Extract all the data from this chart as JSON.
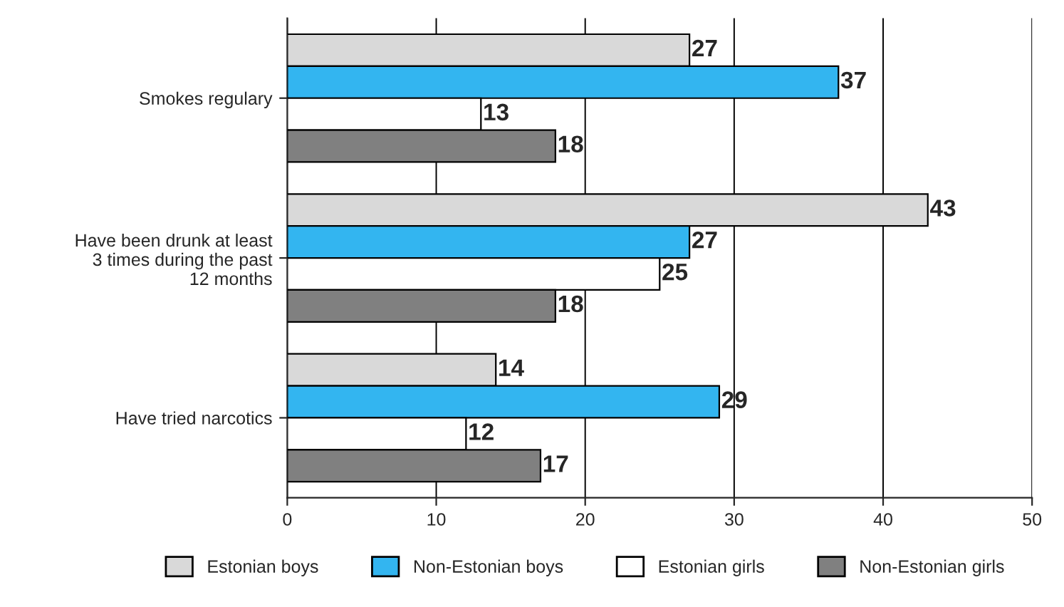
{
  "chart_data": {
    "type": "bar",
    "orientation": "horizontal",
    "categories": [
      "Smokes regulary",
      "Have been drunk at least\n3 times during the past\n12 months",
      "Have tried narcotics"
    ],
    "series": [
      {
        "name": "Estonian boys",
        "color": "#d9d9d9",
        "values": [
          27,
          43,
          14
        ]
      },
      {
        "name": "Non-Estonian boys",
        "color": "#33b5f0",
        "values": [
          37,
          27,
          29
        ]
      },
      {
        "name": "Estonian girls",
        "color": "#ffffff",
        "values": [
          13,
          25,
          12
        ]
      },
      {
        "name": "Non-Estonian girls",
        "color": "#808080",
        "values": [
          18,
          18,
          17
        ]
      }
    ],
    "xlim": [
      0,
      50
    ],
    "xticks": [
      0,
      10,
      20,
      30,
      40,
      50
    ],
    "grid": "x",
    "legend": "bottom",
    "data_labels": true
  }
}
